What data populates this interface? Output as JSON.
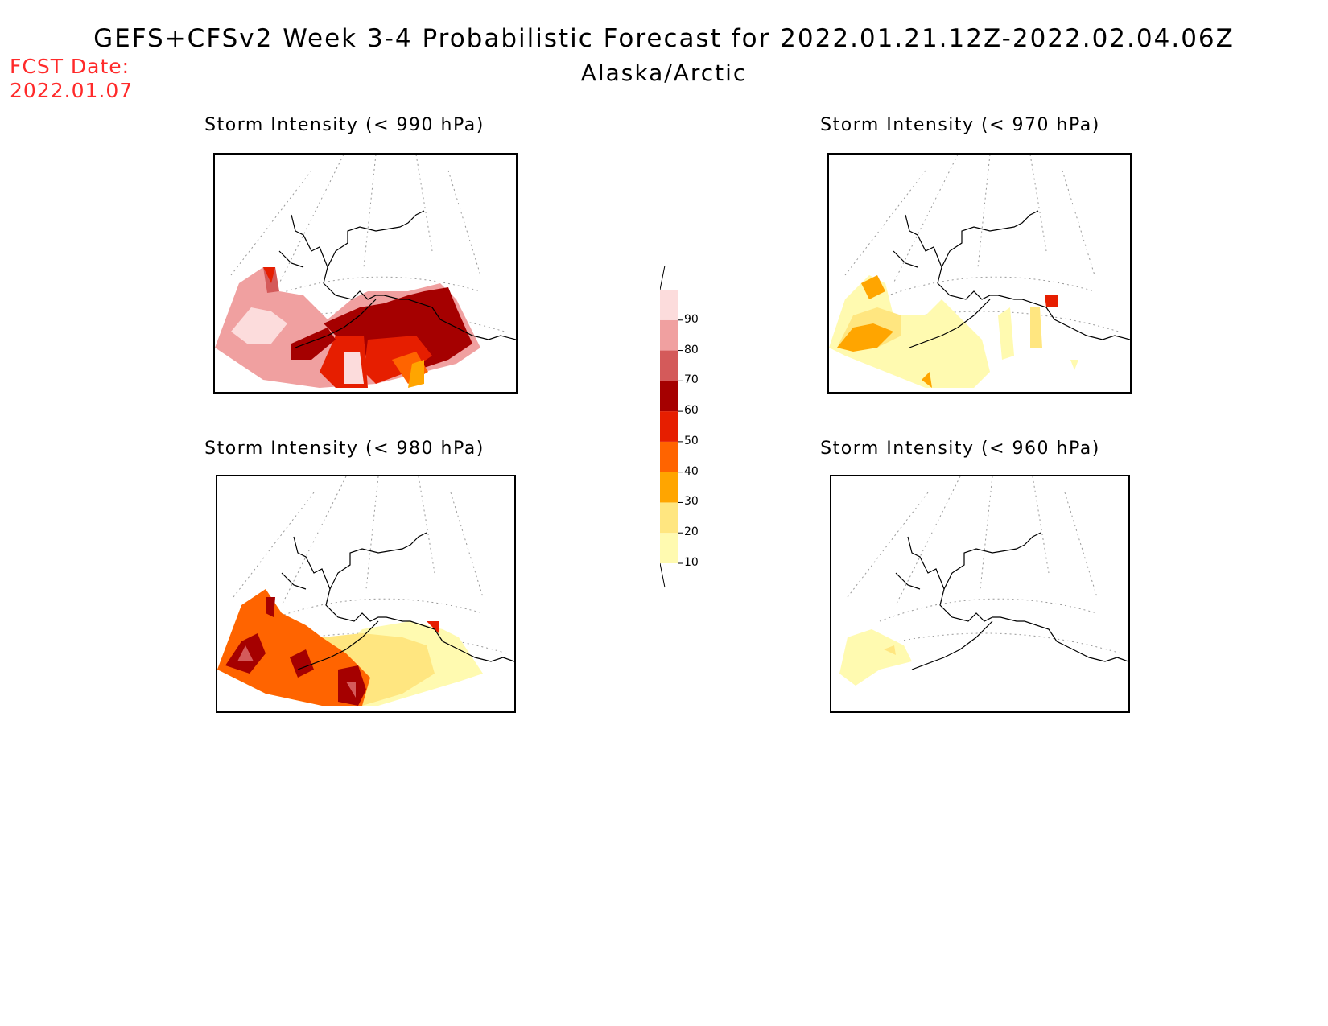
{
  "title": {
    "line1": "GEFS+CFSv2 Week 3-4 Probabilistic Forecast for 2022.01.21.12Z-2022.02.04.06Z",
    "line2": "Alaska/Arctic"
  },
  "fcst": {
    "label": "FCST Date:",
    "date": "2022.01.07"
  },
  "panels": [
    {
      "title": "Storm Intensity (< 990 hPa)",
      "level": "high"
    },
    {
      "title": "Storm Intensity (< 970 hPa)",
      "level": "low"
    },
    {
      "title": "Storm Intensity (< 980 hPa)",
      "level": "medium"
    },
    {
      "title": "Storm Intensity (< 960 hPa)",
      "level": "minimal"
    }
  ],
  "colorbar": {
    "levels": [
      "10",
      "20",
      "30",
      "40",
      "50",
      "60",
      "70",
      "80",
      "90"
    ],
    "colors": [
      "#fffab0",
      "#ffe680",
      "#ffa500",
      "#ff6400",
      "#e61e00",
      "#a50000",
      "#d45a5a",
      "#f0a0a0",
      "#fcdcdc"
    ]
  }
}
